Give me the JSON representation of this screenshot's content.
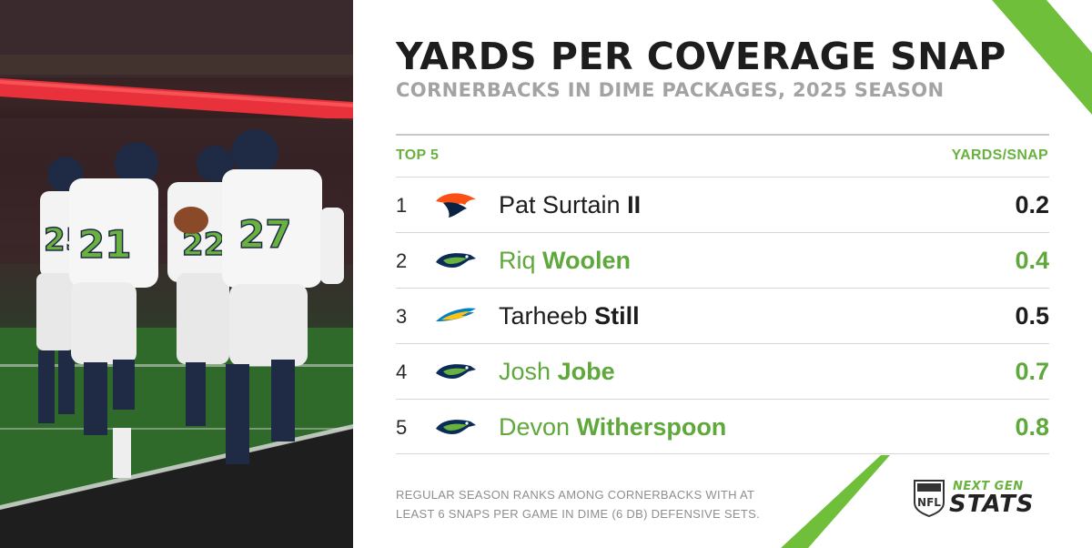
{
  "title": "YARDS PER COVERAGE SNAP",
  "subtitle": "CORNERBACKS IN DIME PACKAGES, 2025 SEASON",
  "header": {
    "left": "TOP 5",
    "right": "YARDS/SNAP"
  },
  "footnote": "REGULAR SEASON RANKS AMONG CORNERBACKS WITH AT LEAST 6 SNAPS PER GAME IN DIME (6 DB) DEFENSIVE SETS.",
  "brand": {
    "top": "NEXT GEN",
    "bottom": "STATS",
    "shield": "NFL"
  },
  "colors": {
    "accent": "#69b23f",
    "text": "#1d1d1d",
    "muted": "#a3a3a3"
  },
  "photo": {
    "jerseys": [
      "25",
      "21",
      "22",
      "27"
    ]
  },
  "chart_data": {
    "type": "table",
    "columns": [
      "TOP 5",
      "YARDS/SNAP"
    ],
    "rows": [
      {
        "rank": "1",
        "team_logo": "broncos-logo",
        "first": "Pat Surtain",
        "last": "II",
        "value": "0.2",
        "highlight": false
      },
      {
        "rank": "2",
        "team_logo": "seahawks-logo",
        "first": "Riq",
        "last": "Woolen",
        "value": "0.4",
        "highlight": true
      },
      {
        "rank": "3",
        "team_logo": "chargers-logo",
        "first": "Tarheeb",
        "last": "Still",
        "value": "0.5",
        "highlight": false
      },
      {
        "rank": "4",
        "team_logo": "seahawks-logo",
        "first": "Josh",
        "last": "Jobe",
        "value": "0.7",
        "highlight": true
      },
      {
        "rank": "5",
        "team_logo": "seahawks-logo",
        "first": "Devon",
        "last": "Witherspoon",
        "value": "0.8",
        "highlight": true
      }
    ]
  }
}
